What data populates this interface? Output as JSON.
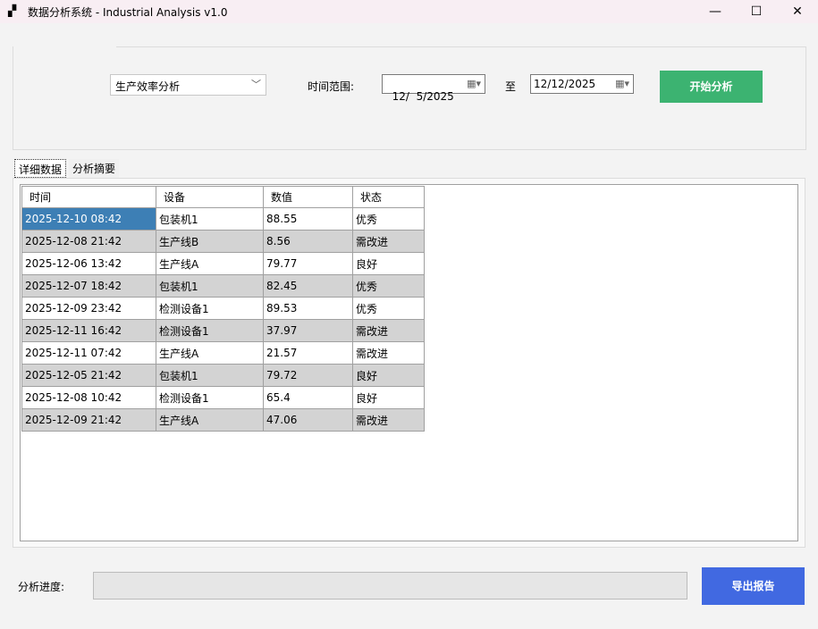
{
  "window": {
    "title": "数据分析系统 - Industrial Analysis v1.0",
    "minimize": "—",
    "maximize": "☐",
    "close": "✕"
  },
  "controls": {
    "analysis_type": "生产效率分析",
    "time_range_label": "时间范围:",
    "start_date": "12/  5/2025",
    "to_label": "至",
    "end_date": "12/12/2025",
    "start_button": "开始分析"
  },
  "tabs": [
    {
      "label": "详细数据",
      "active": true
    },
    {
      "label": "分析摘要",
      "active": false
    }
  ],
  "table": {
    "columns": [
      "时间",
      "设备",
      "数值",
      "状态"
    ],
    "rows": [
      [
        "2025-12-10 08:42",
        "包装机1",
        "88.55",
        "优秀"
      ],
      [
        "2025-12-08 21:42",
        "生产线B",
        "8.56",
        "需改进"
      ],
      [
        "2025-12-06 13:42",
        "生产线A",
        "79.77",
        "良好"
      ],
      [
        "2025-12-07 18:42",
        "包装机1",
        "82.45",
        "优秀"
      ],
      [
        "2025-12-09 23:42",
        "检测设备1",
        "89.53",
        "优秀"
      ],
      [
        "2025-12-11 16:42",
        "检测设备1",
        "37.97",
        "需改进"
      ],
      [
        "2025-12-11 07:42",
        "生产线A",
        "21.57",
        "需改进"
      ],
      [
        "2025-12-05 21:42",
        "包装机1",
        "79.72",
        "良好"
      ],
      [
        "2025-12-08 10:42",
        "检测设备1",
        "65.4",
        "良好"
      ],
      [
        "2025-12-09 21:42",
        "生产线A",
        "47.06",
        "需改进"
      ]
    ]
  },
  "progress": {
    "label": "分析进度:",
    "value_percent": 0
  },
  "export_button": "导出报告",
  "colors": {
    "start_button": "#3cb371",
    "export_button": "#4169e1",
    "selected_cell": "#3d7fb5",
    "alt_row": "#d3d3d3"
  }
}
